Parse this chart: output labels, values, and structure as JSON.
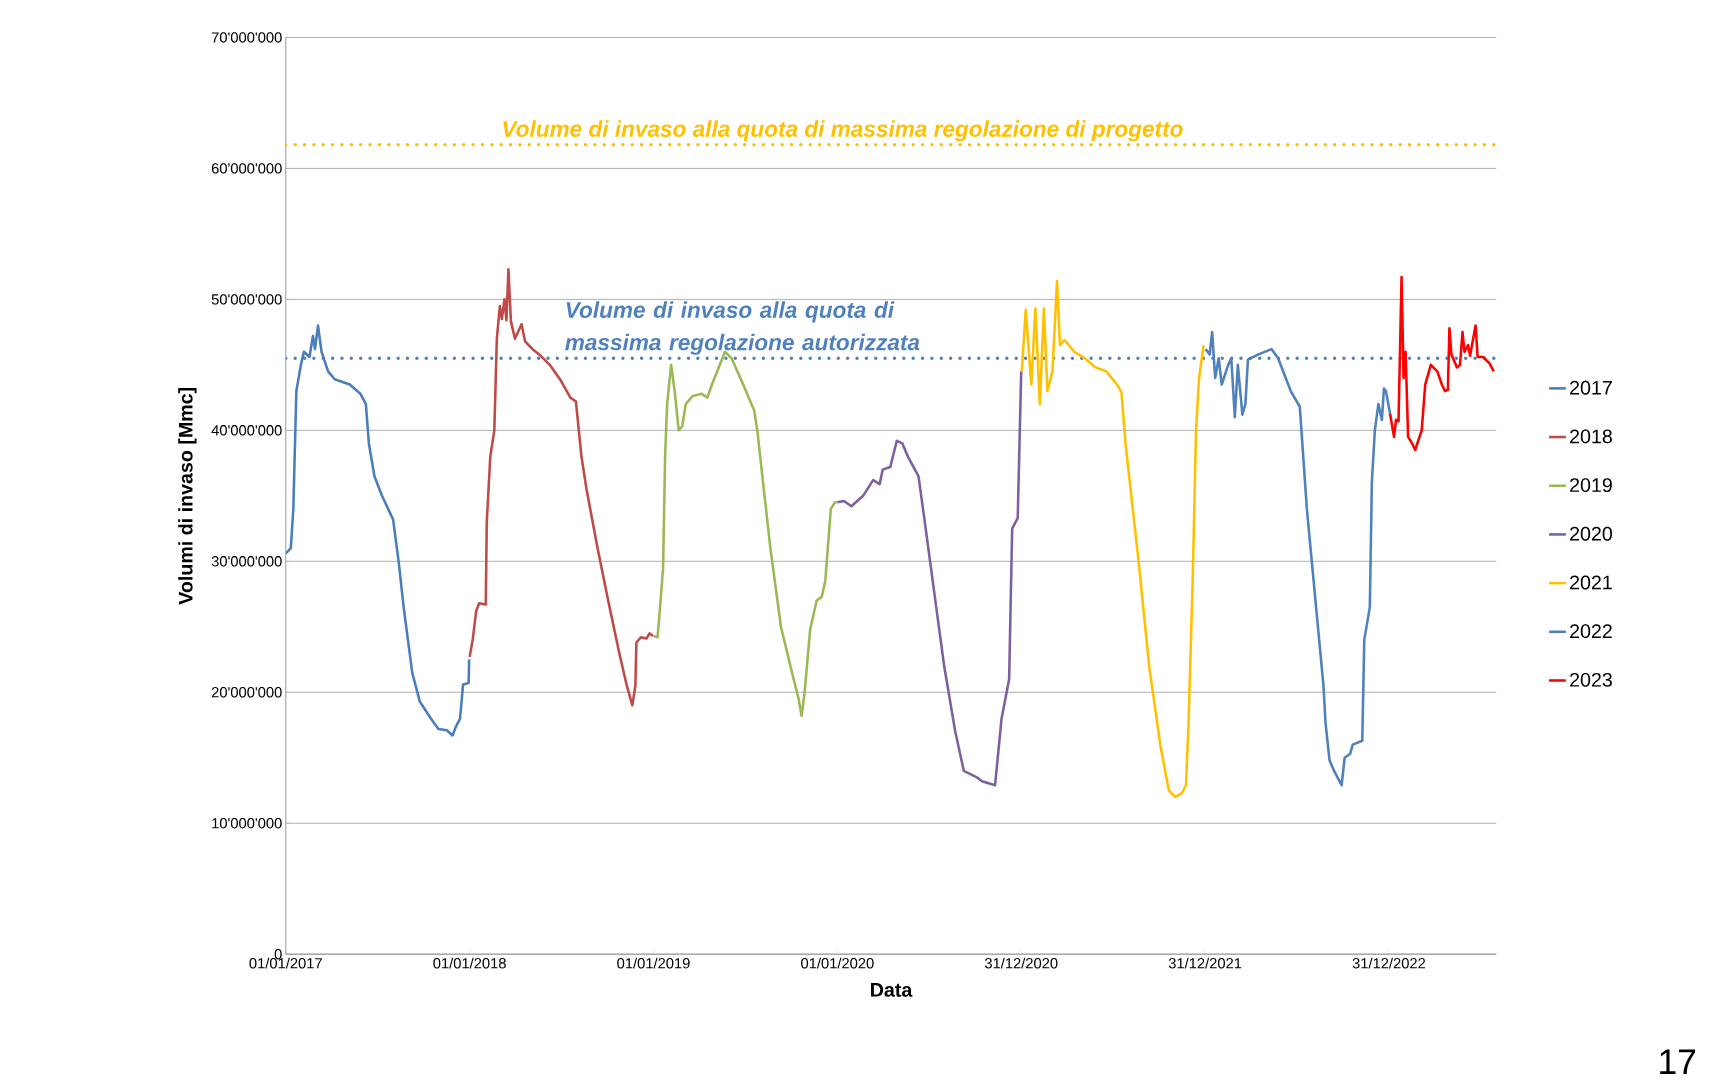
{
  "chart_data": {
    "type": "line",
    "xlabel": "Data",
    "ylabel": "Volumi di invaso [Mmc]",
    "xlim": [
      "2017-01-01",
      "2023-08-01"
    ],
    "xticks": [
      {
        "value": "2017-01-01",
        "label": "01/01/2017"
      },
      {
        "value": "2018-01-01",
        "label": "01/01/2018"
      },
      {
        "value": "2019-01-01",
        "label": "01/01/2019"
      },
      {
        "value": "2020-01-01",
        "label": "01/01/2020"
      },
      {
        "value": "2020-12-31",
        "label": "31/12/2020"
      },
      {
        "value": "2021-12-31",
        "label": "31/12/2021"
      },
      {
        "value": "2022-12-31",
        "label": "31/12/2022"
      }
    ],
    "ylim": [
      0,
      70000000
    ],
    "yticks": [
      0,
      {
        "value": 10000000,
        "label": "10'000'000"
      },
      {
        "value": 20000000,
        "label": "20'000'000"
      },
      {
        "value": 30000000,
        "label": "30'000'000"
      },
      {
        "value": 40000000,
        "label": "40'000'000"
      },
      {
        "value": 50000000,
        "label": "50'000'000"
      },
      {
        "value": 60000000,
        "label": "60'000'000"
      },
      {
        "value": 70000000,
        "label": "70'000'000"
      }
    ],
    "grid": "y",
    "legend": "right",
    "ref_lines": [
      {
        "axis": "y",
        "value": 61800000,
        "label": "Volume di invaso alla quota di massima regolazione di progetto",
        "color": "#ffc000",
        "line_style": "dotted"
      },
      {
        "axis": "y",
        "value": 45500000,
        "label": "Volume di invaso alla quota di massima regolazione autorizzata",
        "color": "#4f81bd",
        "line_style": "dotted"
      }
    ],
    "annotations": [
      "17"
    ],
    "series": [
      {
        "name": "2017",
        "color": "#4a7ebb",
        "x": [
          "2017-01-01",
          "2017-01-11",
          "2017-01-16",
          "2017-01-22",
          "2017-01-31",
          "2017-02-06",
          "2017-02-17",
          "2017-02-24",
          "2017-02-28",
          "2017-03-06",
          "2017-03-13",
          "2017-03-26",
          "2017-04-08",
          "2017-05-08",
          "2017-05-29",
          "2017-06-09",
          "2017-06-15",
          "2017-06-26",
          "2017-07-11",
          "2017-08-02",
          "2017-08-13",
          "2017-08-23",
          "2017-09-09",
          "2017-09-24",
          "2017-10-16",
          "2017-10-31",
          "2017-11-17",
          "2017-11-28",
          "2017-12-04",
          "2017-12-13",
          "2017-12-19",
          "2017-12-30",
          "2017-12-31"
        ],
        "values": [
          30600000,
          31000000,
          34000000,
          43000000,
          45000000,
          46000000,
          45600000,
          47200000,
          46200000,
          48000000,
          46000000,
          44500000,
          43900000,
          43500000,
          42800000,
          42000000,
          39000000,
          36500000,
          35000000,
          33200000,
          30000000,
          26500000,
          21500000,
          19300000,
          18000000,
          17200000,
          17100000,
          16700000,
          17300000,
          18000000,
          20600000,
          20700000,
          22500000
        ]
      },
      {
        "name": "2018",
        "color": "#be4b48",
        "x": [
          "2018-01-01",
          "2018-01-07",
          "2018-01-14",
          "2018-01-20",
          "2018-02-02",
          "2018-02-04",
          "2018-02-11",
          "2018-02-19",
          "2018-02-24",
          "2018-03-02",
          "2018-03-06",
          "2018-03-11",
          "2018-03-15",
          "2018-03-19",
          "2018-03-24",
          "2018-04-01",
          "2018-04-14",
          "2018-04-21",
          "2018-05-06",
          "2018-05-19",
          "2018-06-09",
          "2018-07-01",
          "2018-07-20",
          "2018-07-31",
          "2018-08-11",
          "2018-08-21",
          "2018-09-12",
          "2018-10-03",
          "2018-10-25",
          "2018-11-09",
          "2018-11-20",
          "2018-11-26",
          "2018-11-28",
          "2018-12-07",
          "2018-12-18",
          "2018-12-24",
          "2018-12-31"
        ],
        "values": [
          22700000,
          24000000,
          26200000,
          26800000,
          26700000,
          33000000,
          38000000,
          40000000,
          47000000,
          49500000,
          48500000,
          50000000,
          48400000,
          52300000,
          48300000,
          47000000,
          48100000,
          46800000,
          46200000,
          45800000,
          45000000,
          43800000,
          42500000,
          42200000,
          38000000,
          35500000,
          31000000,
          27000000,
          23000000,
          20500000,
          19000000,
          20500000,
          23800000,
          24200000,
          24100000,
          24500000,
          24300000
        ]
      },
      {
        "name": "2019",
        "color": "#98b954",
        "x": [
          "2019-01-01",
          "2019-01-09",
          "2019-01-13",
          "2019-01-20",
          "2019-01-24",
          "2019-01-28",
          "2019-02-05",
          "2019-02-12",
          "2019-02-20",
          "2019-02-27",
          "2019-03-06",
          "2019-03-19",
          "2019-04-06",
          "2019-04-18",
          "2019-04-27",
          "2019-05-23",
          "2019-06-05",
          "2019-06-28",
          "2019-07-20",
          "2019-07-26",
          "2019-08-21",
          "2019-09-11",
          "2019-10-03",
          "2019-10-16",
          "2019-10-22",
          "2019-10-28",
          "2019-11-08",
          "2019-11-21",
          "2019-12-01",
          "2019-12-08",
          "2019-12-19",
          "2019-12-27",
          "2019-12-31"
        ],
        "values": [
          24300000,
          24200000,
          26000000,
          29500000,
          38000000,
          42000000,
          45000000,
          43000000,
          40000000,
          40300000,
          42000000,
          42600000,
          42800000,
          42500000,
          43500000,
          46000000,
          45500000,
          43500000,
          41500000,
          40000000,
          31000000,
          25000000,
          21500000,
          19500000,
          18200000,
          20000000,
          24800000,
          27000000,
          27300000,
          28500000,
          34000000,
          34500000,
          34500000
        ]
      },
      {
        "name": "2020",
        "color": "#7d60a0",
        "x": [
          "2020-01-01",
          "2020-01-14",
          "2020-01-29",
          "2020-02-21",
          "2020-03-12",
          "2020-03-25",
          "2020-03-31",
          "2020-04-15",
          "2020-04-28",
          "2020-05-09",
          "2020-05-20",
          "2020-06-10",
          "2020-06-19",
          "2020-07-10",
          "2020-07-31",
          "2020-08-22",
          "2020-09-08",
          "2020-10-04",
          "2020-10-14",
          "2020-11-09",
          "2020-11-22",
          "2020-12-07",
          "2020-12-13",
          "2020-12-24",
          "2020-12-31"
        ],
        "values": [
          34500000,
          34600000,
          34200000,
          35000000,
          36200000,
          35900000,
          37000000,
          37200000,
          39200000,
          39000000,
          38000000,
          36500000,
          34000000,
          28000000,
          22000000,
          17000000,
          14000000,
          13500000,
          13200000,
          12900000,
          18000000,
          21000000,
          32500000,
          33300000,
          44500000
        ]
      },
      {
        "name": "2021",
        "color": "#ffc000",
        "x": [
          "2021-01-01",
          "2021-01-09",
          "2021-01-20",
          "2021-01-28",
          "2021-02-06",
          "2021-02-14",
          "2021-02-21",
          "2021-03-03",
          "2021-03-12",
          "2021-03-18",
          "2021-03-27",
          "2021-04-15",
          "2021-05-06",
          "2021-05-28",
          "2021-06-18",
          "2021-07-09",
          "2021-07-18",
          "2021-07-26",
          "2021-08-21",
          "2021-09-11",
          "2021-10-03",
          "2021-10-20",
          "2021-11-02",
          "2021-11-15",
          "2021-11-23",
          "2021-11-28",
          "2021-12-06",
          "2021-12-13",
          "2021-12-19",
          "2021-12-28"
        ],
        "values": [
          44500000,
          49200000,
          43500000,
          49300000,
          42000000,
          49300000,
          43000000,
          44500000,
          51400000,
          46500000,
          46900000,
          46000000,
          45500000,
          44800000,
          44500000,
          43500000,
          42900000,
          39000000,
          30000000,
          22000000,
          16000000,
          12500000,
          12000000,
          12300000,
          12900000,
          17500000,
          28000000,
          40000000,
          44000000,
          46500000
        ]
      },
      {
        "name": "2022",
        "color": "#4f81bd",
        "x": [
          "2022-01-01",
          "2022-01-09",
          "2022-01-14",
          "2022-01-20",
          "2022-01-27",
          "2022-02-02",
          "2022-02-15",
          "2022-02-21",
          "2022-02-28",
          "2022-03-06",
          "2022-03-15",
          "2022-03-21",
          "2022-03-26",
          "2022-04-16",
          "2022-05-12",
          "2022-05-25",
          "2022-06-19",
          "2022-07-07",
          "2022-07-21",
          "2022-08-12",
          "2022-08-23",
          "2022-08-27",
          "2022-09-04",
          "2022-09-13",
          "2022-09-28",
          "2022-10-04",
          "2022-10-15",
          "2022-10-20",
          "2022-11-08",
          "2022-11-12",
          "2022-11-23",
          "2022-11-27",
          "2022-12-03",
          "2022-12-10",
          "2022-12-17",
          "2022-12-21",
          "2022-12-25",
          "2023-01-02"
        ],
        "values": [
          46200000,
          45800000,
          47500000,
          44000000,
          45500000,
          43500000,
          45000000,
          45500000,
          41000000,
          45000000,
          41200000,
          42000000,
          45400000,
          45800000,
          46200000,
          45500000,
          43000000,
          41800000,
          34000000,
          25000000,
          20500000,
          17700000,
          14800000,
          14000000,
          12900000,
          15000000,
          15300000,
          16000000,
          16300000,
          24000000,
          26500000,
          36000000,
          40000000,
          42000000,
          40800000,
          43200000,
          43000000,
          41300000
        ]
      },
      {
        "name": "2023",
        "color": "#ff0000",
        "x": [
          "2023-01-02",
          "2023-01-10",
          "2023-01-14",
          "2023-01-19",
          "2023-01-25",
          "2023-01-29",
          "2023-02-02",
          "2023-02-07",
          "2023-02-15",
          "2023-02-21",
          "2023-03-06",
          "2023-03-13",
          "2023-03-24",
          "2023-04-06",
          "2023-04-15",
          "2023-04-21",
          "2023-04-27",
          "2023-04-30",
          "2023-05-04",
          "2023-05-15",
          "2023-05-21",
          "2023-05-26",
          "2023-05-30",
          "2023-06-06",
          "2023-06-10",
          "2023-06-21",
          "2023-06-25",
          "2023-07-06",
          "2023-07-19",
          "2023-07-27"
        ],
        "values": [
          41300000,
          39500000,
          40800000,
          40700000,
          51700000,
          44000000,
          46000000,
          39500000,
          39000000,
          38500000,
          40000000,
          43500000,
          45000000,
          44500000,
          43500000,
          43000000,
          43100000,
          47800000,
          45800000,
          44800000,
          45000000,
          47500000,
          46000000,
          46500000,
          45700000,
          48000000,
          45600000,
          45600000,
          45100000,
          44500000
        ]
      }
    ]
  }
}
